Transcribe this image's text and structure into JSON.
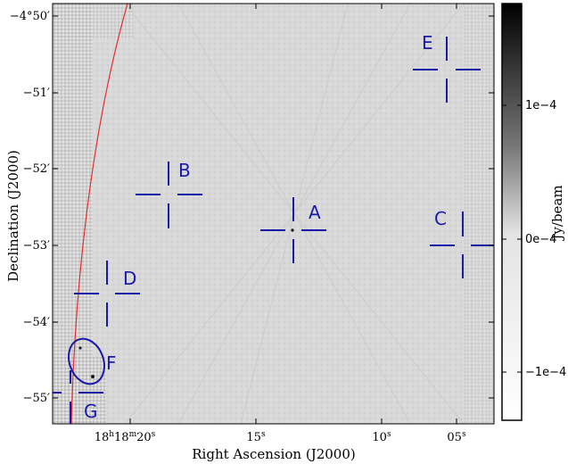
{
  "axes": {
    "xlabel": "Right Ascension (J2000)",
    "ylabel": "Declination (J2000)",
    "x_ticks": [
      {
        "label": "18h18m20s",
        "parts": [
          "18",
          "h",
          "18",
          "m",
          "20",
          "s"
        ]
      },
      {
        "label": "15s",
        "parts": [
          "15",
          "s"
        ]
      },
      {
        "label": "10s",
        "parts": [
          "10",
          "s"
        ]
      },
      {
        "label": "05s",
        "parts": [
          "05",
          "s"
        ]
      }
    ],
    "y_ticks": [
      "−4°50′",
      "−51′",
      "−52′",
      "−53′",
      "−54′",
      "−55′"
    ]
  },
  "colorbar": {
    "label": "Jy/beam",
    "ticks": [
      "1e−4",
      "0e−4",
      "−1e−4"
    ],
    "scale": "grayscale"
  },
  "markers": [
    {
      "id": "A",
      "label": "A"
    },
    {
      "id": "B",
      "label": "B"
    },
    {
      "id": "C",
      "label": "C"
    },
    {
      "id": "D",
      "label": "D"
    },
    {
      "id": "E",
      "label": "E"
    },
    {
      "id": "F",
      "label": "F"
    },
    {
      "id": "G",
      "label": "G"
    }
  ],
  "colors": {
    "marker": "#1a1aa8",
    "boundary_curve": "#e03030",
    "background": "#d9d9d9"
  }
}
